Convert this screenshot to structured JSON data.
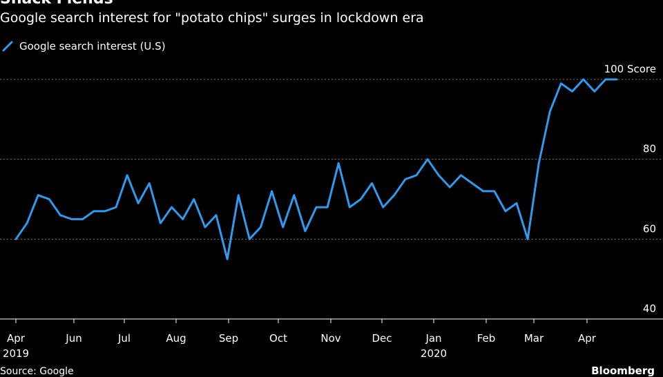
{
  "header": {
    "title": "Snack Fiends",
    "subtitle": "Google search interest for \"potato chips\" surges in lockdown era"
  },
  "footer": {
    "source": "Source: Google",
    "brand": "Bloomberg"
  },
  "colors": {
    "background": "#000000",
    "line": "#2f9bf0",
    "grid": "#7a7a7a",
    "text": "#ffffff"
  },
  "chart_data": {
    "type": "line",
    "title": "Snack Fiends",
    "subtitle": "Google search interest for \"potato chips\" surges in lockdown era",
    "xlabel": "",
    "ylabel": "",
    "y_unit_label": "Score",
    "ylim": [
      40,
      100
    ],
    "yticks": [
      40,
      60,
      80,
      100
    ],
    "grid": true,
    "legend_position": "top-left",
    "x_tick_labels": [
      "Apr",
      "Jun",
      "Jul",
      "Aug",
      "Sep",
      "Oct",
      "Nov",
      "Dec",
      "Jan",
      "Feb",
      "Mar",
      "Apr"
    ],
    "x_year_labels": [
      {
        "label": "2019",
        "under": "Apr"
      },
      {
        "label": "2020",
        "under": "Jan"
      }
    ],
    "series": [
      {
        "name": "Google search interest (U.S)",
        "x": [
          "2019-04-07",
          "2019-04-14",
          "2019-04-21",
          "2019-04-28",
          "2019-05-05",
          "2019-05-12",
          "2019-05-19",
          "2019-05-26",
          "2019-06-02",
          "2019-06-09",
          "2019-06-16",
          "2019-06-23",
          "2019-06-30",
          "2019-07-07",
          "2019-07-14",
          "2019-07-21",
          "2019-07-28",
          "2019-08-04",
          "2019-08-11",
          "2019-08-18",
          "2019-08-25",
          "2019-09-01",
          "2019-09-08",
          "2019-09-15",
          "2019-09-22",
          "2019-09-29",
          "2019-10-06",
          "2019-10-13",
          "2019-10-20",
          "2019-10-27",
          "2019-11-03",
          "2019-11-10",
          "2019-11-17",
          "2019-11-24",
          "2019-12-01",
          "2019-12-08",
          "2019-12-15",
          "2019-12-22",
          "2019-12-29",
          "2020-01-05",
          "2020-01-12",
          "2020-01-19",
          "2020-01-26",
          "2020-02-02",
          "2020-02-09",
          "2020-02-16",
          "2020-02-23",
          "2020-03-01",
          "2020-03-08",
          "2020-03-15",
          "2020-03-22",
          "2020-03-29",
          "2020-04-05",
          "2020-04-12",
          "2020-04-19"
        ],
        "values": [
          60,
          64,
          71,
          70,
          66,
          65,
          65,
          67,
          67,
          68,
          76,
          69,
          74,
          64,
          68,
          65,
          70,
          63,
          66,
          55,
          71,
          60,
          63,
          72,
          63,
          71,
          62,
          68,
          68,
          79,
          68,
          70,
          74,
          68,
          71,
          75,
          76,
          80,
          76,
          73,
          76,
          74,
          72,
          72,
          67,
          69,
          60,
          79,
          92,
          99,
          97,
          100,
          97,
          100,
          100
        ]
      }
    ]
  }
}
